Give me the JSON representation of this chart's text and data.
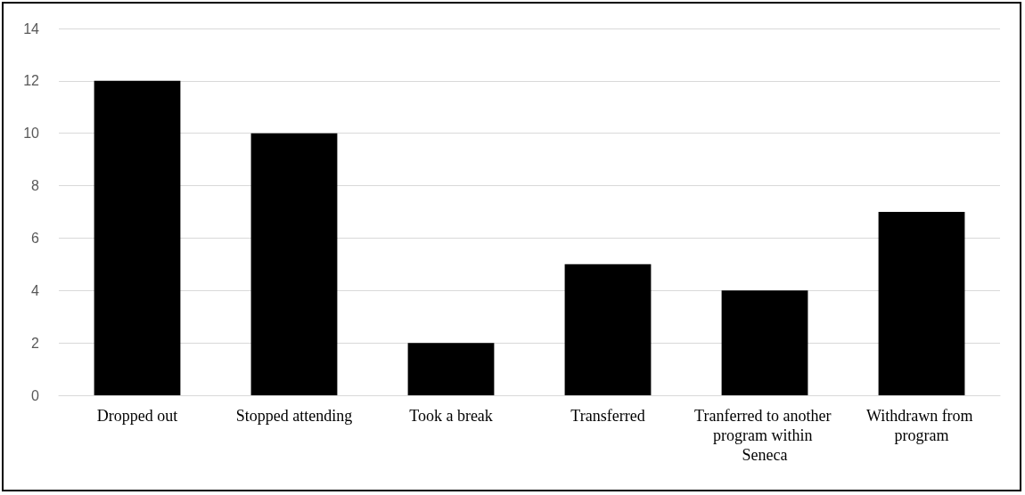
{
  "chart_data": {
    "type": "bar",
    "categories": [
      "Dropped out",
      "Stopped attending",
      "Took a break",
      "Transferred",
      "Tranferred to another program within Seneca",
      "Withdrawn from program"
    ],
    "values": [
      12,
      10,
      2,
      5,
      4,
      7
    ],
    "color": "#000000",
    "ylim": [
      0,
      14
    ],
    "yticks": [
      0,
      2,
      4,
      6,
      8,
      10,
      12,
      14
    ],
    "grid": "y"
  }
}
